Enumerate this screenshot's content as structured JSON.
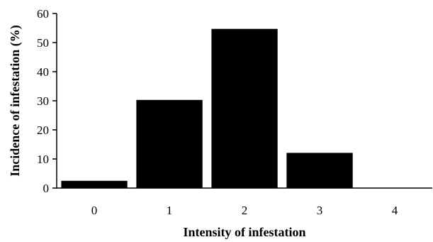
{
  "chart_data": {
    "type": "bar",
    "title": "",
    "xlabel": "Intensity of infestation",
    "ylabel": "Incidence of infestation (%)",
    "categories": [
      "0",
      "1",
      "2",
      "3",
      "4"
    ],
    "values": [
      2.5,
      30.3,
      54.7,
      12.1,
      0
    ],
    "ylim": [
      0,
      60
    ],
    "yticks": [
      "0",
      "10",
      "20",
      "30",
      "40",
      "50",
      "60"
    ],
    "grid": false,
    "legend": "none",
    "bar_color": "#000000"
  }
}
